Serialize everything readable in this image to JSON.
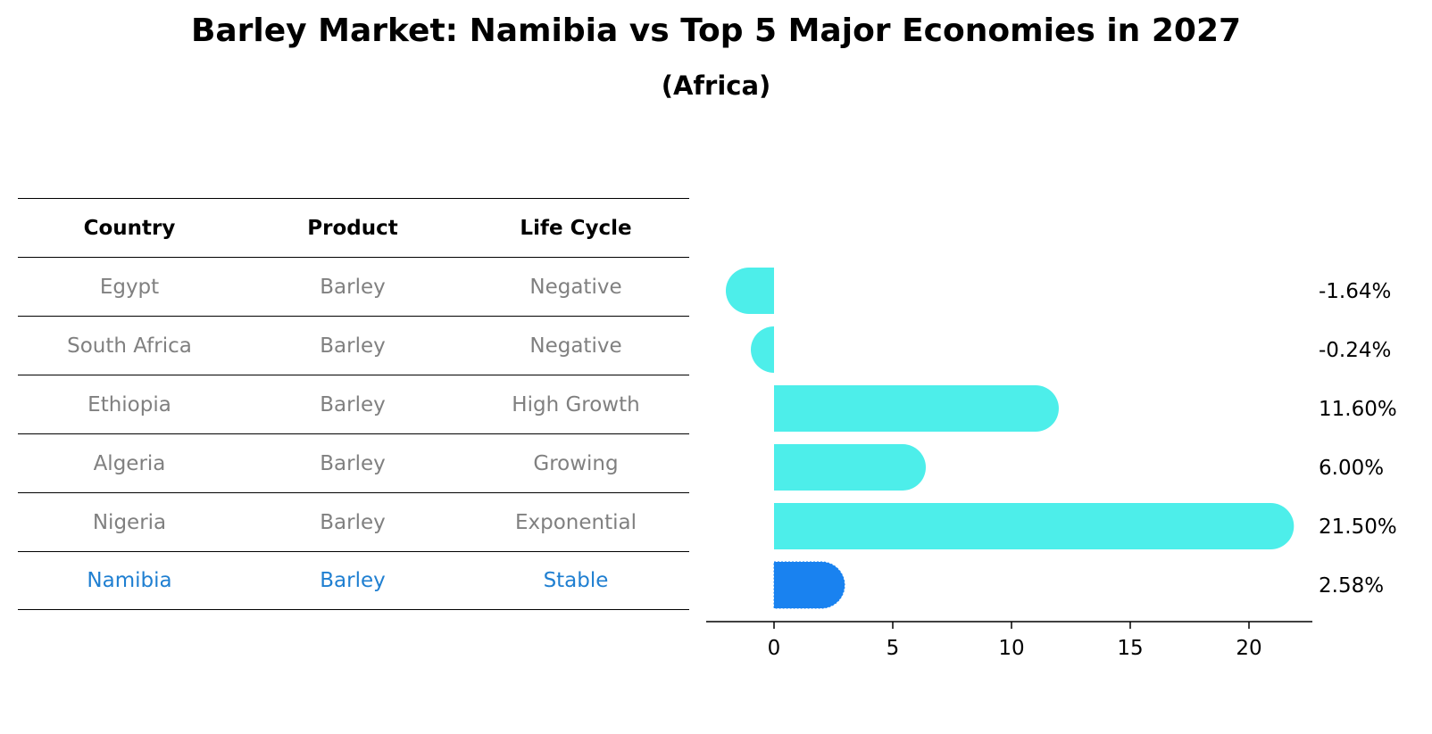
{
  "title": "Barley Market: Namibia vs Top 5 Major Economies in 2027",
  "subtitle": "(Africa)",
  "colors": {
    "bar": "#4deeea",
    "highlight_bar": "#1982f0",
    "highlight_text": "#1f7fd1",
    "muted_text": "#808080"
  },
  "table": {
    "headers": [
      "Country",
      "Product",
      "Life Cycle"
    ],
    "rows": [
      {
        "country": "Egypt",
        "product": "Barley",
        "life_cycle": "Negative"
      },
      {
        "country": "South Africa",
        "product": "Barley",
        "life_cycle": "Negative"
      },
      {
        "country": "Ethiopia",
        "product": "Barley",
        "life_cycle": "High Growth"
      },
      {
        "country": "Algeria",
        "product": "Barley",
        "life_cycle": "Growing"
      },
      {
        "country": "Nigeria",
        "product": "Barley",
        "life_cycle": "Exponential"
      },
      {
        "country": "Namibia",
        "product": "Barley",
        "life_cycle": "Stable"
      }
    ]
  },
  "chart_data": {
    "type": "bar",
    "orientation": "horizontal",
    "categories": [
      "Egypt",
      "South Africa",
      "Ethiopia",
      "Algeria",
      "Nigeria",
      "Namibia"
    ],
    "values": [
      -1.64,
      -0.24,
      11.6,
      6.0,
      21.5,
      2.58
    ],
    "labels": [
      "-1.64%",
      "-0.24%",
      "11.60%",
      "6.00%",
      "21.50%",
      "2.58%"
    ],
    "highlight": "Namibia",
    "xticks": [
      0,
      5,
      10,
      15,
      20
    ],
    "xlim": [
      -2.9,
      22.7
    ],
    "xlabel": "",
    "ylabel": ""
  }
}
